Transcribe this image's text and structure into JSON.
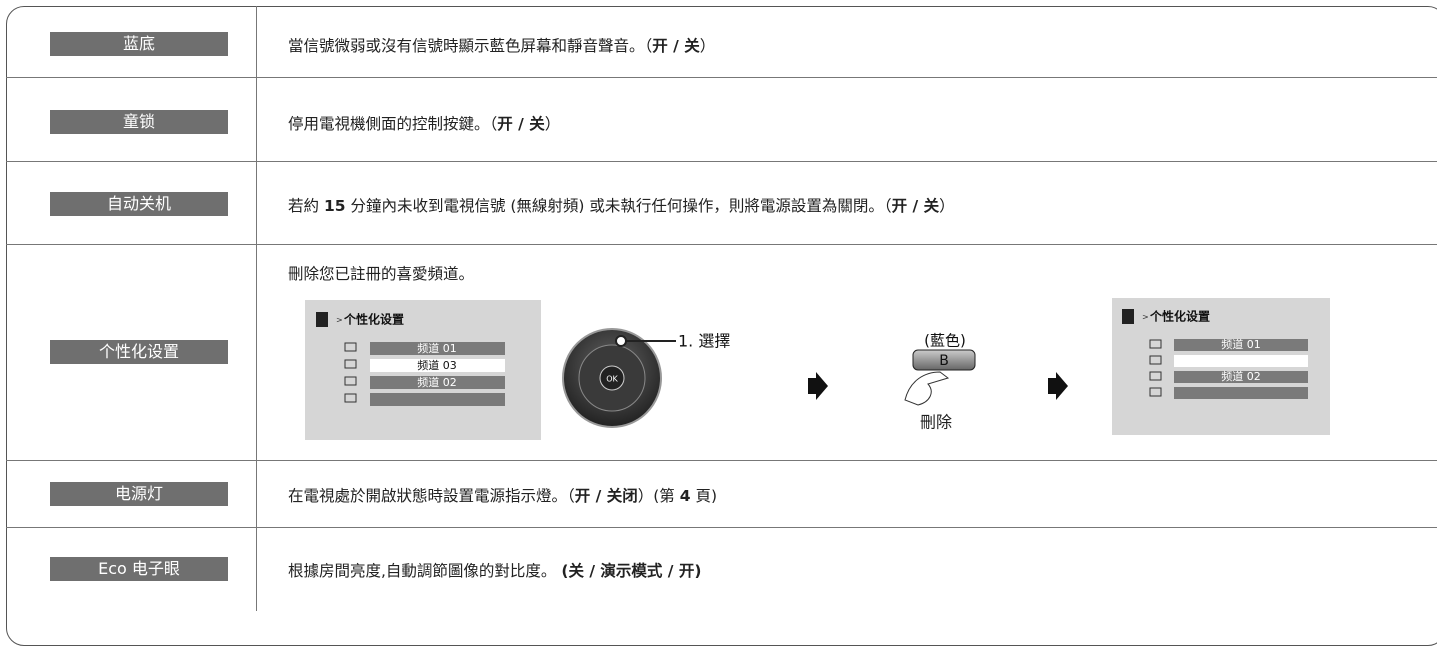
{
  "rows": [
    {
      "label": "蓝底",
      "parts": [
        {
          "text": "當信號微弱或沒有信號時顯示藍色屏幕和靜音聲音。（",
          "bold": false
        },
        {
          "text": "开 / 关",
          "bold": true
        },
        {
          "text": "）",
          "bold": false
        }
      ]
    },
    {
      "label": "童锁",
      "parts": [
        {
          "text": "停用電視機側面的控制按鍵。（",
          "bold": false
        },
        {
          "text": "开 / 关",
          "bold": true
        },
        {
          "text": "）",
          "bold": false
        }
      ]
    },
    {
      "label": "自动关机",
      "parts": [
        {
          "text": "若約 ",
          "bold": false
        },
        {
          "text": "15",
          "bold": true
        },
        {
          "text": " 分鐘內未收到電視信號 (無線射頻) 或未執行任何操作，則將電源設置為關閉。（",
          "bold": false
        },
        {
          "text": "开 / 关",
          "bold": true
        },
        {
          "text": "）",
          "bold": false
        }
      ]
    },
    {
      "label": "个性化设置",
      "parts": [
        {
          "text": "刪除您已註冊的喜愛頻道。",
          "bold": false
        }
      ]
    },
    {
      "label": "电源灯",
      "parts": [
        {
          "text": "在電視處於開啟狀態時設置電源指示燈。（",
          "bold": false
        },
        {
          "text": "开 / 关闭",
          "bold": true
        },
        {
          "text": "）(第 ",
          "bold": false
        },
        {
          "text": "4",
          "bold": true
        },
        {
          "text": " 頁)",
          "bold": false
        }
      ]
    },
    {
      "label": "Eco 电子眼",
      "parts": [
        {
          "text": "根據房間亮度,自動調節圖像的對比度。 ",
          "bold": false
        },
        {
          "text": "(关 / 演示模式 / 开)",
          "bold": true
        }
      ]
    }
  ],
  "illustration": {
    "menu_before": {
      "title": "个性化设置",
      "items": [
        "频道 01",
        "频道 03",
        "频道 02"
      ]
    },
    "ok": "OK",
    "select": "1. 選擇",
    "color": "(藍色)",
    "button": "B",
    "delete": "刪除",
    "menu_after": {
      "title": "个性化设置",
      "items": [
        "频道 01",
        "频道 02"
      ]
    }
  }
}
